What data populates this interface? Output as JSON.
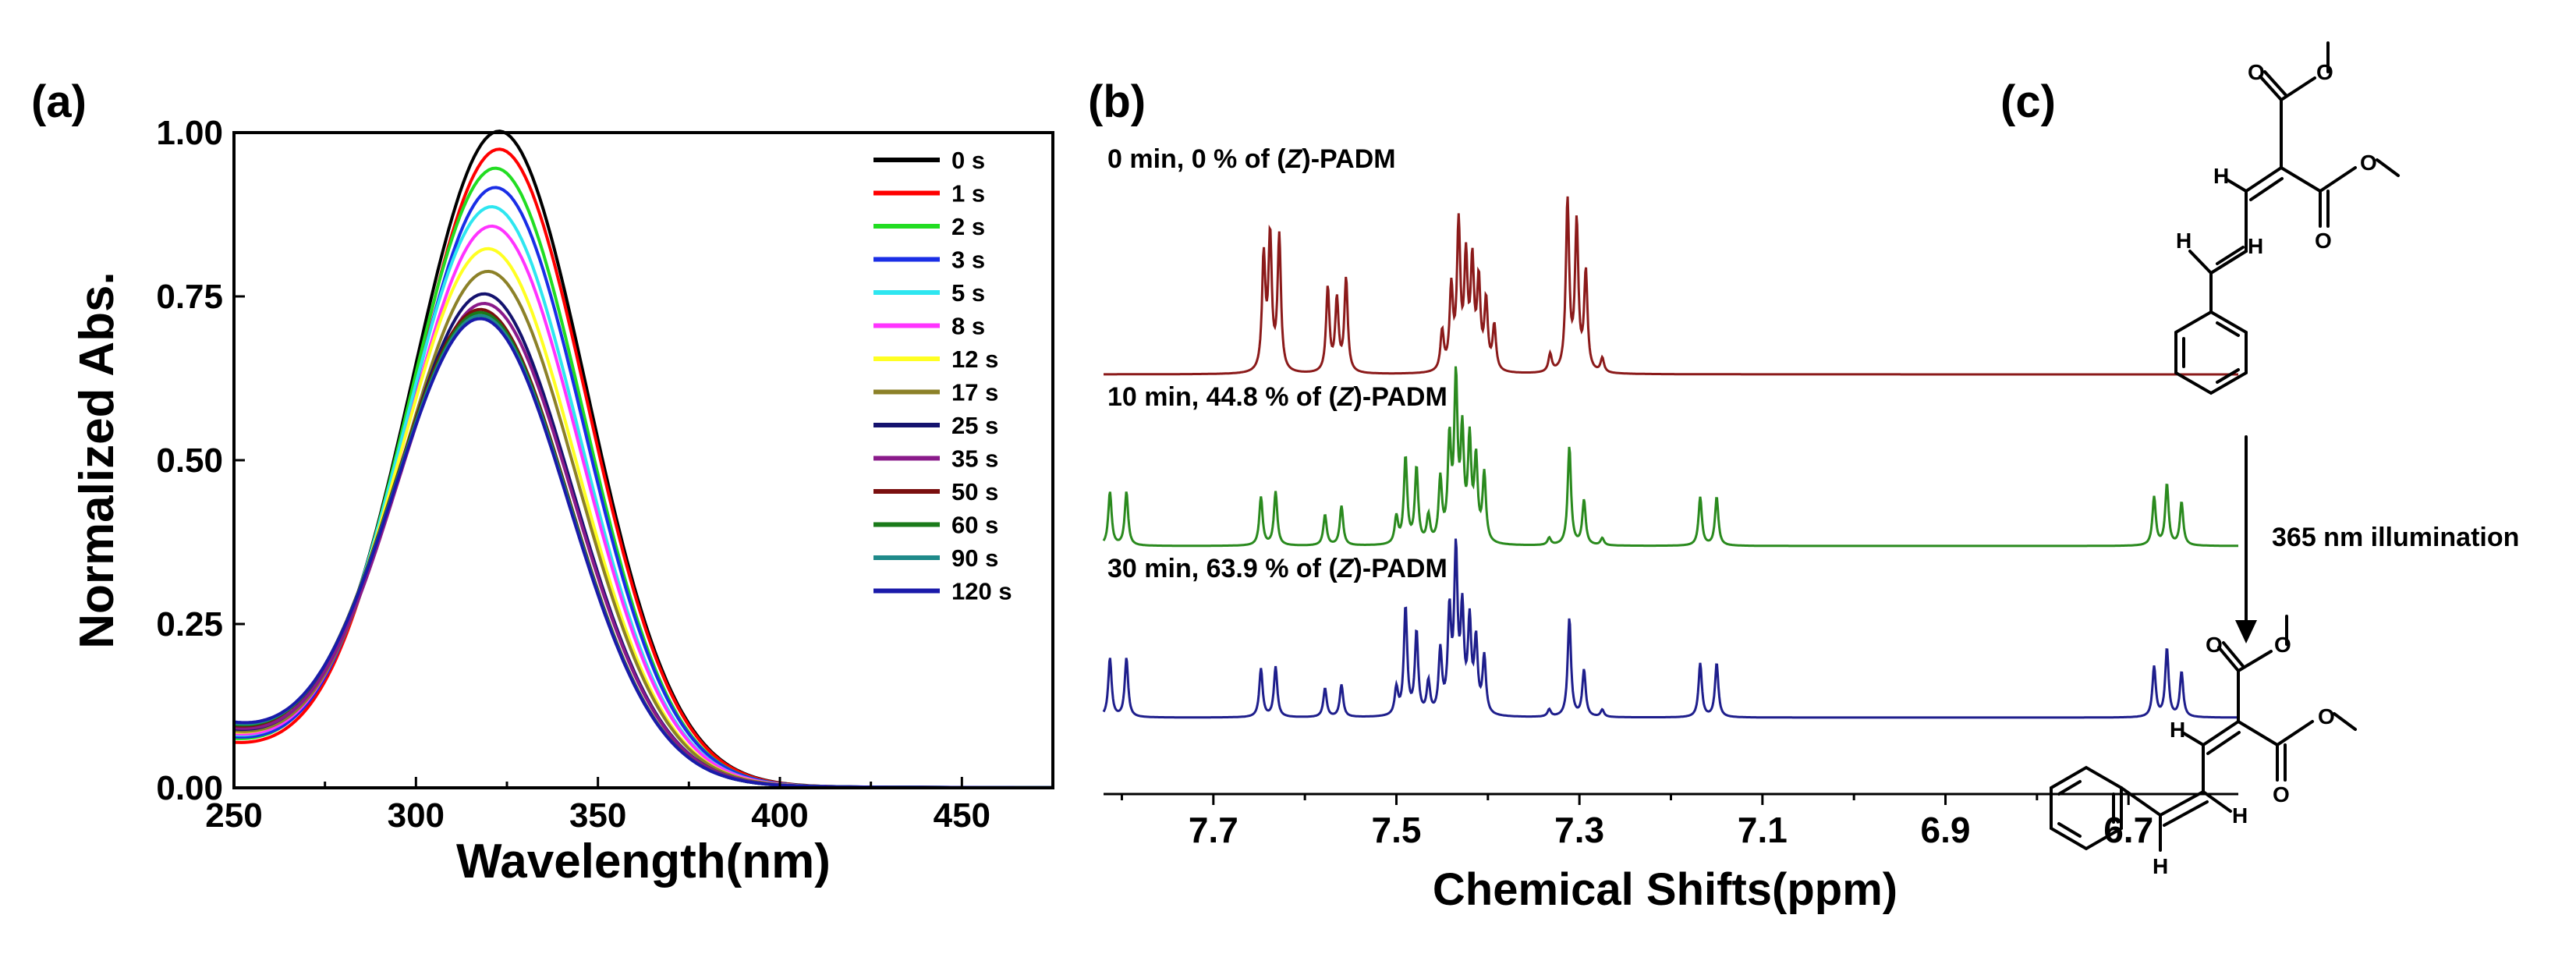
{
  "panels": {
    "a": {
      "label": "(a)"
    },
    "b": {
      "label": "(b)"
    },
    "c": {
      "label": "(c)"
    }
  },
  "chart_data": [
    {
      "type": "line",
      "panel": "(a)",
      "title": "",
      "xlabel": "Wavelength(nm)",
      "ylabel": "Normalized Abs.",
      "xlim": [
        250,
        475
      ],
      "ylim": [
        0,
        1.0
      ],
      "xticks": [
        250,
        300,
        350,
        400,
        450
      ],
      "xtick_labels": [
        "250",
        "300",
        "350",
        "400",
        "450"
      ],
      "yticks": [
        0,
        0.25,
        0.5,
        0.75,
        1.0
      ],
      "ytick_labels": [
        "0.00",
        "0.25",
        "0.50",
        "0.75",
        "1.00"
      ],
      "legend_position": "top-right",
      "series": [
        {
          "name": "0 s",
          "color": "#000000",
          "peak_nm": 323,
          "peak": 0.99,
          "base": 0.075
        },
        {
          "name": "1 s",
          "color": "#ff0000",
          "peak_nm": 323,
          "peak": 0.965,
          "base": 0.06
        },
        {
          "name": "2 s",
          "color": "#22dd22",
          "peak_nm": 322,
          "peak": 0.935,
          "base": 0.065
        },
        {
          "name": "3 s",
          "color": "#1a2ee6",
          "peak_nm": 322,
          "peak": 0.905,
          "base": 0.068
        },
        {
          "name": "5 s",
          "color": "#2ee6f0",
          "peak_nm": 321,
          "peak": 0.875,
          "base": 0.07
        },
        {
          "name": "8 s",
          "color": "#ff33ff",
          "peak_nm": 321,
          "peak": 0.845,
          "base": 0.072
        },
        {
          "name": "12 s",
          "color": "#ffff22",
          "peak_nm": 320,
          "peak": 0.81,
          "base": 0.074
        },
        {
          "name": "17 s",
          "color": "#8c8128",
          "peak_nm": 320,
          "peak": 0.775,
          "base": 0.076
        },
        {
          "name": "25 s",
          "color": "#14126e",
          "peak_nm": 319,
          "peak": 0.74,
          "base": 0.078
        },
        {
          "name": "35 s",
          "color": "#8a1a8a",
          "peak_nm": 319,
          "peak": 0.725,
          "base": 0.08
        },
        {
          "name": "50 s",
          "color": "#7a0f0f",
          "peak_nm": 318,
          "peak": 0.715,
          "base": 0.082
        },
        {
          "name": "60 s",
          "color": "#1a7a1a",
          "peak_nm": 318,
          "peak": 0.71,
          "base": 0.084
        },
        {
          "name": "90 s",
          "color": "#1f8a8a",
          "peak_nm": 318,
          "peak": 0.705,
          "base": 0.086
        },
        {
          "name": "120 s",
          "color": "#1a1aaa",
          "peak_nm": 318,
          "peak": 0.7,
          "base": 0.088
        }
      ]
    },
    {
      "type": "line",
      "panel": "(b)",
      "title": "",
      "xlabel": "Chemical Shifts(ppm)",
      "ylabel": "",
      "xlim": [
        7.82,
        6.58
      ],
      "xticks": [
        7.7,
        7.5,
        7.3,
        7.1,
        6.9,
        6.7
      ],
      "xtick_labels": [
        "7.7",
        "7.5",
        "7.3",
        "7.1",
        "6.9",
        "6.7"
      ],
      "series": [
        {
          "name": "0 min",
          "label_prefix": "0 min,  0 % of (",
          "label_italic": "Z",
          "label_suffix": ")-PADM",
          "color": "#8b1a1a",
          "peaks": [
            [
              7.645,
              0.63
            ],
            [
              7.638,
              0.74
            ],
            [
              7.628,
              0.75
            ],
            [
              7.575,
              0.47
            ],
            [
              7.565,
              0.4
            ],
            [
              7.555,
              0.52
            ],
            [
              7.45,
              0.22
            ],
            [
              7.44,
              0.45
            ],
            [
              7.432,
              0.8
            ],
            [
              7.424,
              0.6
            ],
            [
              7.417,
              0.58
            ],
            [
              7.41,
              0.48
            ],
            [
              7.402,
              0.38
            ],
            [
              7.393,
              0.25
            ],
            [
              7.332,
              0.1
            ],
            [
              7.313,
              0.95
            ],
            [
              7.303,
              0.82
            ],
            [
              7.293,
              0.55
            ],
            [
              7.275,
              0.08
            ]
          ]
        },
        {
          "name": "10 min",
          "label_prefix": "10 min,  44.8 % of (",
          "label_italic": "Z",
          "label_suffix": ")-PADM",
          "color": "#2a8a1e",
          "peaks": [
            [
              7.813,
              0.3
            ],
            [
              7.795,
              0.3
            ],
            [
              7.648,
              0.27
            ],
            [
              7.632,
              0.3
            ],
            [
              7.578,
              0.17
            ],
            [
              7.56,
              0.22
            ],
            [
              7.5,
              0.15
            ],
            [
              7.49,
              0.48
            ],
            [
              7.478,
              0.42
            ],
            [
              7.465,
              0.15
            ],
            [
              7.452,
              0.35
            ],
            [
              7.442,
              0.55
            ],
            [
              7.435,
              0.88
            ],
            [
              7.428,
              0.58
            ],
            [
              7.42,
              0.55
            ],
            [
              7.413,
              0.45
            ],
            [
              7.404,
              0.38
            ],
            [
              7.333,
              0.04
            ],
            [
              7.311,
              0.55
            ],
            [
              7.295,
              0.25
            ],
            [
              7.275,
              0.04
            ],
            [
              7.168,
              0.27
            ],
            [
              7.15,
              0.27
            ],
            [
              6.672,
              0.27
            ],
            [
              6.658,
              0.34
            ],
            [
              6.642,
              0.24
            ]
          ]
        },
        {
          "name": "30 min",
          "label_prefix": "30 min,  63.9 % of (",
          "label_italic": "Z",
          "label_suffix": ")-PADM",
          "color": "#1e1e8c",
          "peaks": [
            [
              7.813,
              0.33
            ],
            [
              7.795,
              0.33
            ],
            [
              7.648,
              0.27
            ],
            [
              7.632,
              0.28
            ],
            [
              7.578,
              0.16
            ],
            [
              7.56,
              0.18
            ],
            [
              7.5,
              0.15
            ],
            [
              7.49,
              0.6
            ],
            [
              7.478,
              0.46
            ],
            [
              7.465,
              0.18
            ],
            [
              7.452,
              0.35
            ],
            [
              7.442,
              0.55
            ],
            [
              7.435,
              0.88
            ],
            [
              7.428,
              0.55
            ],
            [
              7.42,
              0.5
            ],
            [
              7.413,
              0.4
            ],
            [
              7.404,
              0.32
            ],
            [
              7.333,
              0.04
            ],
            [
              7.311,
              0.55
            ],
            [
              7.295,
              0.26
            ],
            [
              7.275,
              0.04
            ],
            [
              7.168,
              0.3
            ],
            [
              7.15,
              0.3
            ],
            [
              6.672,
              0.28
            ],
            [
              6.658,
              0.38
            ],
            [
              6.642,
              0.25
            ]
          ]
        }
      ]
    }
  ],
  "scheme": {
    "arrow_label": "365 nm illumination",
    "top_atoms": {
      "O1": "O",
      "O2": "O",
      "O3": "O",
      "O4": "O",
      "H1": "H",
      "H2": "H",
      "H3": "H"
    },
    "bottom_atoms": {
      "O1": "O",
      "O2": "O",
      "O3": "O",
      "O4": "O",
      "H1": "H",
      "H2": "H",
      "H3": "H"
    }
  }
}
